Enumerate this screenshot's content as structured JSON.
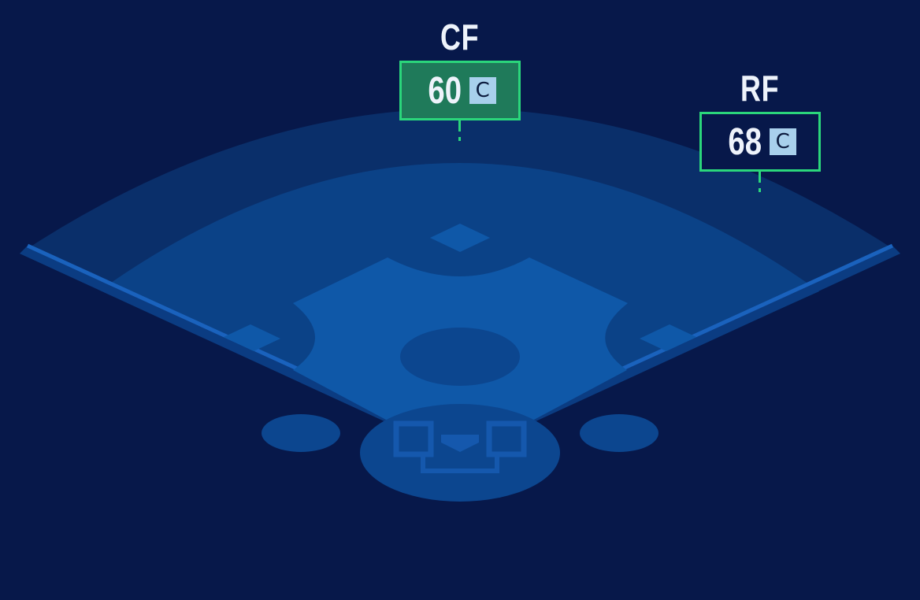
{
  "colors": {
    "background": "#07184a",
    "warning_track": "#0a2f6a",
    "outfield": "#0b4287",
    "infield": "#0f58a8",
    "dirt_dark": "#0c468f",
    "highlight": "#2bd67b",
    "grade_badge": "#a8d0ec",
    "active_box": "#1f7a5a"
  },
  "positions": [
    {
      "name": "CF",
      "rating": "60",
      "grade": "C",
      "selected": true
    },
    {
      "name": "RF",
      "rating": "68",
      "grade": "C",
      "selected": false
    }
  ]
}
